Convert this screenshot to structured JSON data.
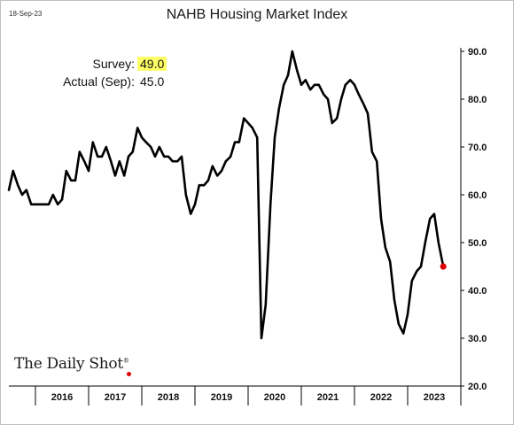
{
  "header": {
    "date": "18-Sep-23",
    "title": "NAHB Housing Market Index"
  },
  "annotation": {
    "survey_label": "Survey:",
    "survey_value": "49.0",
    "actual_label": "Actual (Sep):",
    "actual_value": "45.0",
    "highlight_color": "#ffff66"
  },
  "logo": {
    "text": "The Daily Shot",
    "mark": "®"
  },
  "colors": {
    "line": "#000000",
    "last_point": "#e00000"
  },
  "chart_data": {
    "type": "line",
    "title": "NAHB Housing Market Index",
    "xlabel": "",
    "ylabel": "",
    "xlim": [
      2015.5,
      2024.0
    ],
    "ylim": [
      20,
      90
    ],
    "yticks": [
      "20.0",
      "30.0",
      "40.0",
      "50.0",
      "60.0",
      "70.0",
      "80.0",
      "90.0"
    ],
    "xticks": [
      "2016",
      "2017",
      "2018",
      "2019",
      "2020",
      "2021",
      "2022",
      "2023"
    ],
    "y_axis_position": "right",
    "grid": false,
    "series": [
      {
        "values": [
          [
            2015.5,
            61
          ],
          [
            2015.58,
            65
          ],
          [
            2015.67,
            62
          ],
          [
            2015.75,
            60
          ],
          [
            2015.83,
            61
          ],
          [
            2015.92,
            58
          ],
          [
            2016.0,
            58
          ],
          [
            2016.08,
            58
          ],
          [
            2016.17,
            58
          ],
          [
            2016.25,
            58
          ],
          [
            2016.33,
            60
          ],
          [
            2016.42,
            58
          ],
          [
            2016.5,
            59
          ],
          [
            2016.58,
            65
          ],
          [
            2016.67,
            63
          ],
          [
            2016.75,
            63
          ],
          [
            2016.83,
            69
          ],
          [
            2016.92,
            67
          ],
          [
            2017.0,
            65
          ],
          [
            2017.08,
            71
          ],
          [
            2017.17,
            68
          ],
          [
            2017.25,
            68
          ],
          [
            2017.33,
            70
          ],
          [
            2017.42,
            67
          ],
          [
            2017.5,
            64
          ],
          [
            2017.58,
            67
          ],
          [
            2017.67,
            64
          ],
          [
            2017.75,
            68
          ],
          [
            2017.83,
            69
          ],
          [
            2017.92,
            74
          ],
          [
            2018.0,
            72
          ],
          [
            2018.08,
            71
          ],
          [
            2018.17,
            70
          ],
          [
            2018.25,
            68
          ],
          [
            2018.33,
            70
          ],
          [
            2018.42,
            68
          ],
          [
            2018.5,
            68
          ],
          [
            2018.58,
            67
          ],
          [
            2018.67,
            67
          ],
          [
            2018.75,
            68
          ],
          [
            2018.83,
            60
          ],
          [
            2018.92,
            56
          ],
          [
            2019.0,
            58
          ],
          [
            2019.08,
            62
          ],
          [
            2019.17,
            62
          ],
          [
            2019.25,
            63
          ],
          [
            2019.33,
            66
          ],
          [
            2019.42,
            64
          ],
          [
            2019.5,
            65
          ],
          [
            2019.58,
            67
          ],
          [
            2019.67,
            68
          ],
          [
            2019.75,
            71
          ],
          [
            2019.83,
            71
          ],
          [
            2019.92,
            76
          ],
          [
            2020.0,
            75
          ],
          [
            2020.08,
            74
          ],
          [
            2020.17,
            72
          ],
          [
            2020.25,
            30
          ],
          [
            2020.33,
            37
          ],
          [
            2020.42,
            58
          ],
          [
            2020.5,
            72
          ],
          [
            2020.58,
            78
          ],
          [
            2020.67,
            83
          ],
          [
            2020.75,
            85
          ],
          [
            2020.83,
            90
          ],
          [
            2020.92,
            86
          ],
          [
            2021.0,
            83
          ],
          [
            2021.08,
            84
          ],
          [
            2021.17,
            82
          ],
          [
            2021.25,
            83
          ],
          [
            2021.33,
            83
          ],
          [
            2021.42,
            81
          ],
          [
            2021.5,
            80
          ],
          [
            2021.58,
            75
          ],
          [
            2021.67,
            76
          ],
          [
            2021.75,
            80
          ],
          [
            2021.83,
            83
          ],
          [
            2021.92,
            84
          ],
          [
            2022.0,
            83
          ],
          [
            2022.08,
            81
          ],
          [
            2022.17,
            79
          ],
          [
            2022.25,
            77
          ],
          [
            2022.33,
            69
          ],
          [
            2022.42,
            67
          ],
          [
            2022.5,
            55
          ],
          [
            2022.58,
            49
          ],
          [
            2022.67,
            46
          ],
          [
            2022.75,
            38
          ],
          [
            2022.83,
            33
          ],
          [
            2022.92,
            31
          ],
          [
            2023.0,
            35
          ],
          [
            2023.08,
            42
          ],
          [
            2023.17,
            44
          ],
          [
            2023.25,
            45
          ],
          [
            2023.33,
            50
          ],
          [
            2023.42,
            55
          ],
          [
            2023.5,
            56
          ],
          [
            2023.58,
            50
          ],
          [
            2023.67,
            45
          ]
        ]
      }
    ]
  }
}
